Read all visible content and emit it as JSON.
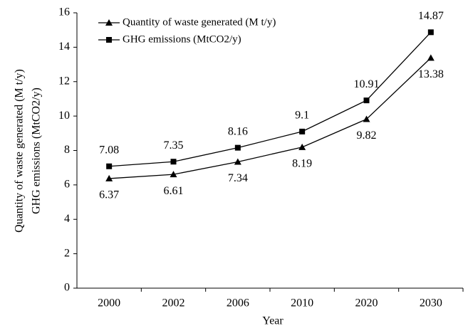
{
  "chart_data": {
    "type": "line",
    "xlabel": "Year",
    "ylabel": [
      "Quantity of waste generated (M t/y)",
      "GHG emissions (MtCO2/y)"
    ],
    "categories": [
      "2000",
      "2002",
      "2006",
      "2010",
      "2020",
      "2030"
    ],
    "series": [
      {
        "name": "Quantity of waste generated (M t/y)",
        "color": "#000000",
        "marker": "triangle",
        "values": [
          6.37,
          6.61,
          7.34,
          8.19,
          9.82,
          13.38
        ]
      },
      {
        "name": "GHG emissions (MtCO2/y)",
        "color": "#000000",
        "marker": "square",
        "values": [
          7.08,
          7.35,
          8.16,
          9.1,
          10.91,
          14.87
        ]
      }
    ],
    "ylim": [
      0,
      16
    ],
    "yticks": [
      0,
      2,
      4,
      6,
      8,
      10,
      12,
      14,
      16
    ],
    "grid": false,
    "legend": "upper left"
  }
}
